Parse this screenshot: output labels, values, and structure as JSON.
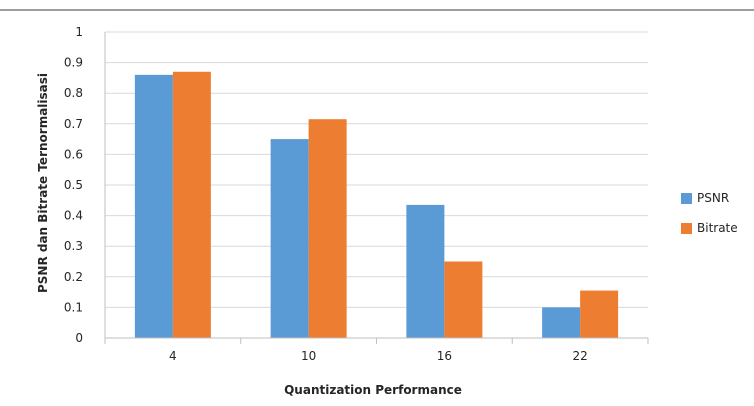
{
  "chart_data": {
    "type": "bar",
    "title": "",
    "xlabel": "Quantization Performance",
    "ylabel": "PSNR dan Bitrate Ternormalisasi",
    "categories": [
      "4",
      "10",
      "16",
      "22"
    ],
    "ylim": [
      0,
      1
    ],
    "yticks": [
      "0",
      "0.1",
      "0.2",
      "0.3",
      "0.4",
      "0.5",
      "0.6",
      "0.7",
      "0.8",
      "0.9",
      "1"
    ],
    "grid": true,
    "legend_position": "right",
    "series": [
      {
        "name": "PSNR",
        "values": [
          0.86,
          0.65,
          0.435,
          0.1
        ],
        "color": "#5b9bd5"
      },
      {
        "name": "Bitrate",
        "values": [
          0.87,
          0.715,
          0.25,
          0.155
        ],
        "color": "#ed7d31"
      }
    ]
  }
}
